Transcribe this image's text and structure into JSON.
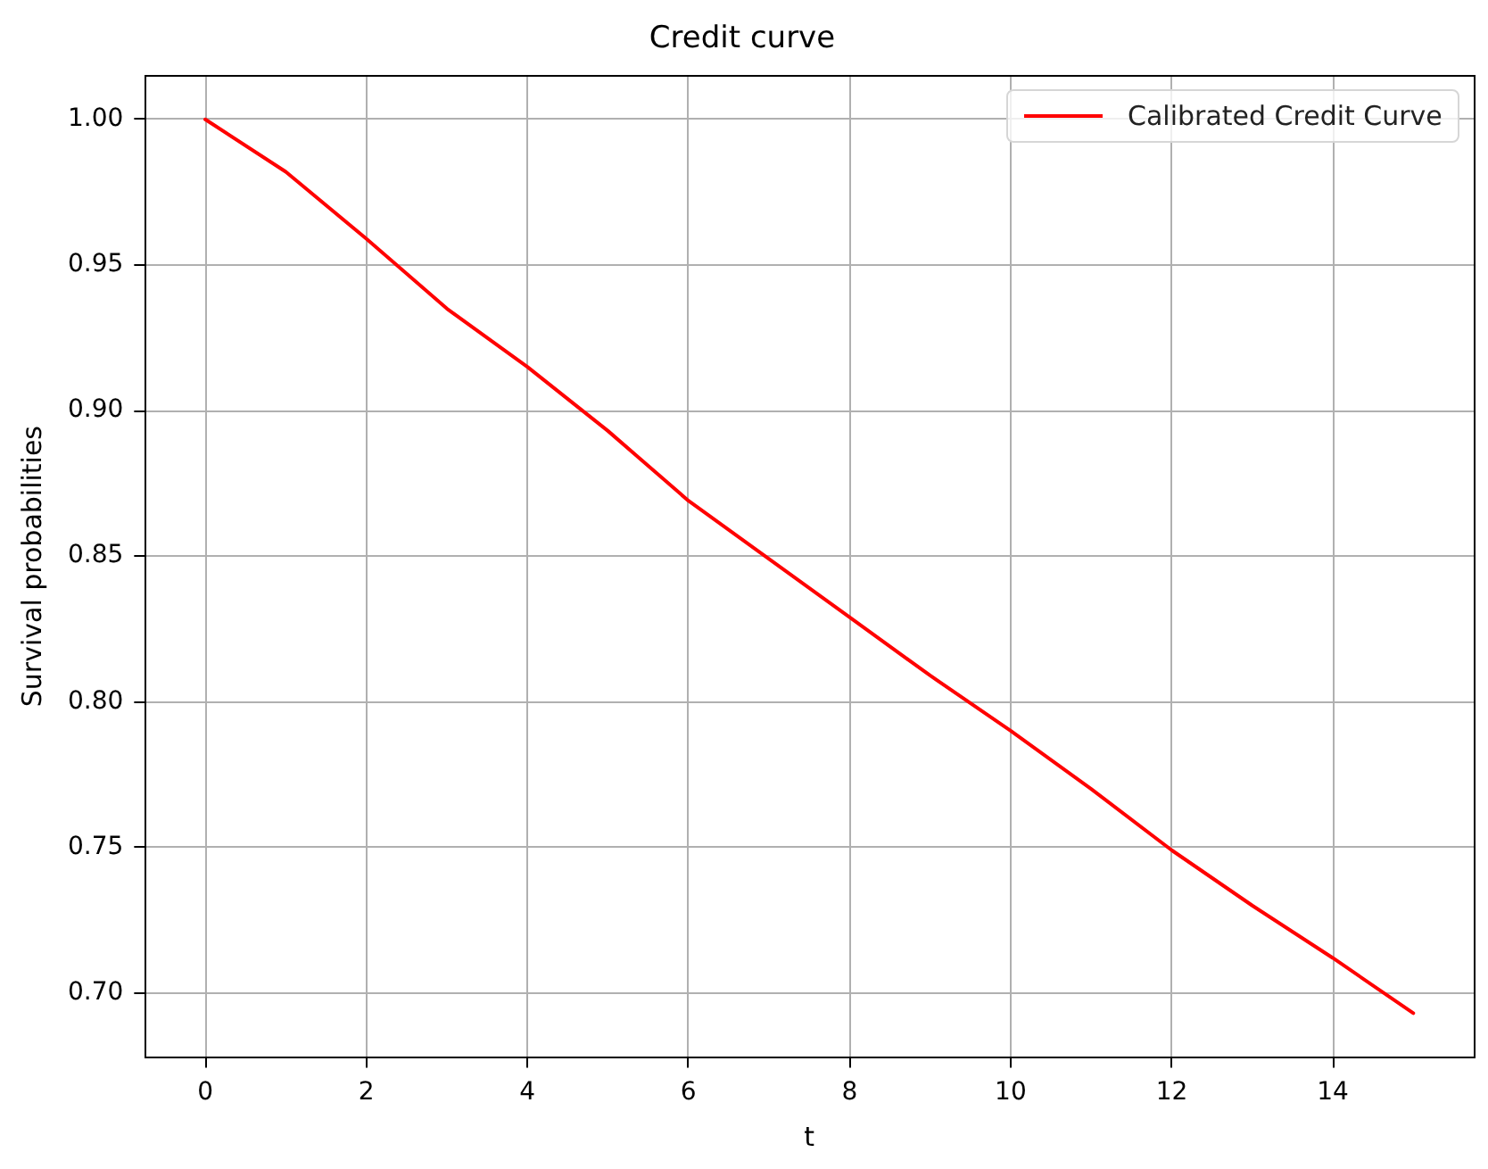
{
  "chart_data": {
    "type": "line",
    "title": "Credit curve",
    "xlabel": "t",
    "ylabel": "Survival probabilities",
    "x": [
      0,
      1,
      2,
      3,
      4,
      5,
      6,
      7,
      8,
      9,
      10,
      11,
      12,
      13,
      14,
      15
    ],
    "series": [
      {
        "name": "Calibrated Credit Curve",
        "color": "#ff0000",
        "values": [
          1.0,
          0.982,
          0.959,
          0.935,
          0.915,
          0.893,
          0.869,
          0.849,
          0.829,
          0.809,
          0.79,
          0.77,
          0.749,
          0.73,
          0.712,
          0.693
        ]
      }
    ],
    "xlim": [
      -0.75,
      15.75
    ],
    "xticks": [
      0,
      2,
      4,
      6,
      8,
      10,
      12,
      14
    ],
    "ylim": [
      0.678,
      1.015
    ],
    "yticks": [
      {
        "value": 0.7,
        "label": "0.70"
      },
      {
        "value": 0.75,
        "label": "0.75"
      },
      {
        "value": 0.8,
        "label": "0.80"
      },
      {
        "value": 0.85,
        "label": "0.85"
      },
      {
        "value": 0.9,
        "label": "0.90"
      },
      {
        "value": 0.95,
        "label": "0.95"
      },
      {
        "value": 1.0,
        "label": "1.00"
      }
    ],
    "grid": true,
    "legend": "top right",
    "marker": "none",
    "line_style": "solid"
  }
}
